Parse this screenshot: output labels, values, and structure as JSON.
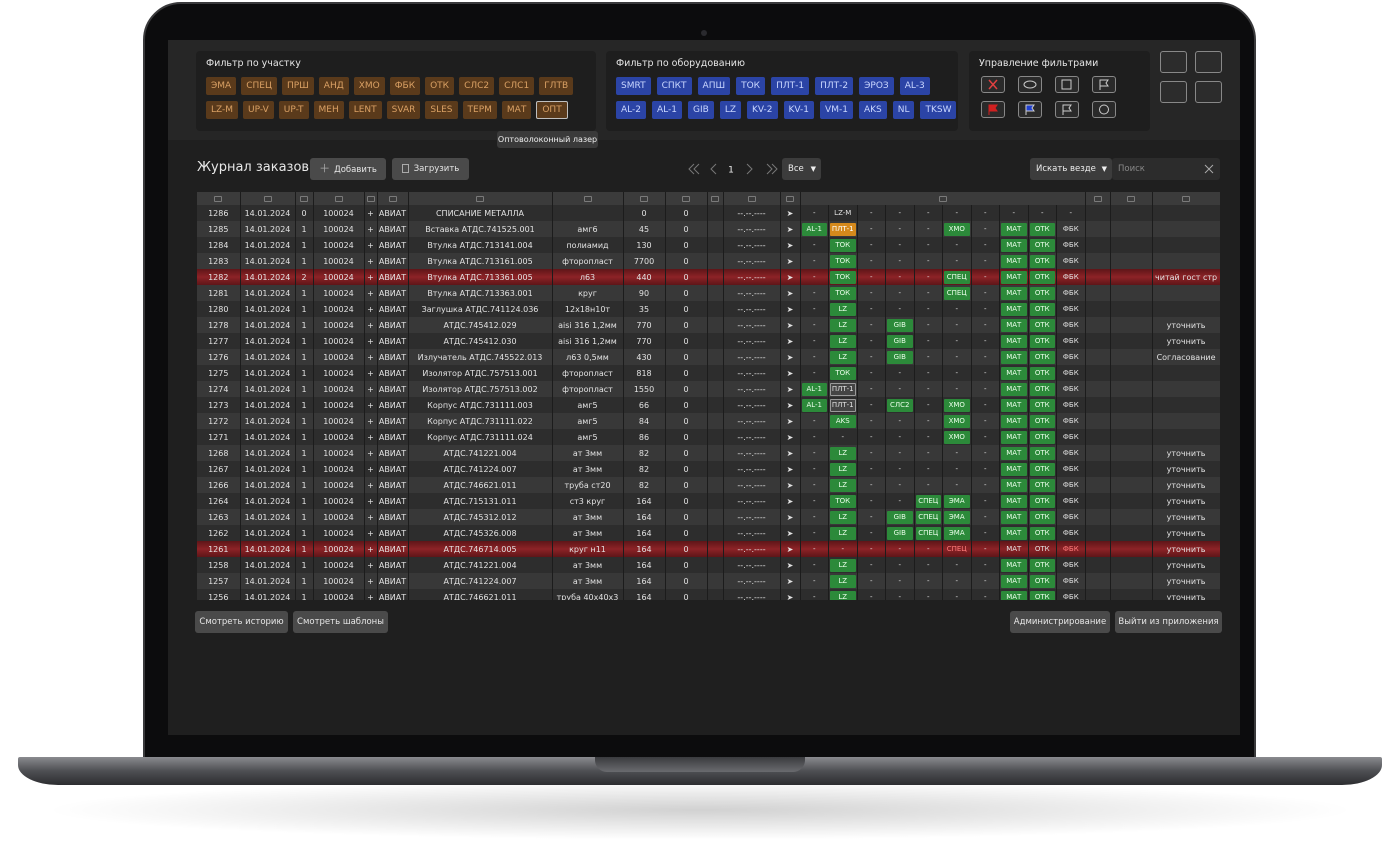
{
  "area_filter": {
    "title": "Фильтр по участку",
    "rows": [
      [
        "ЭМА",
        "СПЕЦ",
        "ПРШ",
        "АНД",
        "ХМО",
        "ФБК",
        "ОТК",
        "СЛС2",
        "СЛС1",
        "ГЛТВ"
      ],
      [
        "LZ-M",
        "UP-V",
        "UP-T",
        "МЕН",
        "LENT",
        "SVAR",
        "SLES",
        "ТЕРМ",
        "МАТ",
        "ОПТ"
      ]
    ]
  },
  "equipment_filter": {
    "title": "Фильтр по оборудованию",
    "rows": [
      [
        "SMRT",
        "СПКТ",
        "АПШ",
        "ТОК",
        "ПЛТ-1",
        "ПЛТ-2",
        "ЭРОЗ",
        "AL-3"
      ],
      [
        "AL-2",
        "AL-1",
        "GIB",
        "LZ",
        "KV-2",
        "KV-1",
        "VM-1",
        "AKS",
        "NL",
        "TKSW"
      ]
    ]
  },
  "filter_management": {
    "title": "Управление фильтрами"
  },
  "tooltip": "Оптоволоконный лазер",
  "journal": {
    "title": "Журнал заказов",
    "add": "Добавить",
    "load": "Загрузить",
    "page": "1",
    "page_size": "Все",
    "search_scope": "Искать везде",
    "search_placeholder": "Поиск"
  },
  "table": {
    "eq_column_styles": [
      "green",
      "green",
      "green",
      "green",
      "green",
      "green",
      "green",
      "green",
      "green",
      "plain"
    ],
    "rows": [
      {
        "cells": [
          "1286",
          "14.01.2024",
          "0",
          "100024",
          "+",
          "АВИАТ",
          "СПИСАНИЕ МЕТАЛЛА",
          null,
          "0",
          "0",
          "--.--.----",
          "➤"
        ],
        "eq": [
          "-",
          {
            "text": "LZ-M",
            "style": "plain"
          },
          "-",
          "-",
          "-",
          "-",
          "-",
          "-",
          "-",
          "-"
        ]
      },
      {
        "cells": [
          "1285",
          "14.01.2024",
          "1",
          "100024",
          "+",
          "АВИАТ",
          "Вставка АТДС.741525.001",
          "амг6",
          "45",
          "0",
          "--.--.----",
          "➤"
        ],
        "eq": [
          "AL-1",
          {
            "text": "ПЛТ-1",
            "style": "orange"
          },
          "-",
          "-",
          "-",
          "ХМО",
          "-",
          "МАТ",
          "ОТК",
          "ФБК"
        ]
      },
      {
        "cells": [
          "1284",
          "14.01.2024",
          "1",
          "100024",
          "+",
          "АВИАТ",
          "Втулка АТДС.713141.004",
          "полиамид",
          "130",
          "0",
          "--.--.----",
          "➤"
        ],
        "eq": [
          "-",
          "ТОК",
          "-",
          "-",
          "-",
          "-",
          "-",
          "МАТ",
          "ОТК",
          "ФБК"
        ]
      },
      {
        "cells": [
          "1283",
          "14.01.2024",
          "1",
          "100024",
          "+",
          "АВИАТ",
          "Втулка АТДС.713161.005",
          "фторопласт",
          "7700",
          "0",
          "--.--.----",
          "➤"
        ],
        "eq": [
          "-",
          "ТОК",
          "-",
          "-",
          "-",
          "-",
          "-",
          "МАТ",
          "ОТК",
          "ФБК"
        ]
      },
      {
        "cells": [
          "1282",
          "14.01.2024",
          "2",
          "100024",
          "+",
          "АВИАТ",
          "Втулка АТДС.713361.005",
          "л63",
          "440",
          "0",
          "--.--.----",
          "➤"
        ],
        "eq": [
          "-",
          "ТОК",
          "-",
          "-",
          "-",
          "СПЕЦ",
          "-",
          "МАТ",
          "ОТК",
          "ФБК"
        ],
        "note": "читай гост стр",
        "highlight": "red"
      },
      {
        "cells": [
          "1281",
          "14.01.2024",
          "1",
          "100024",
          "+",
          "АВИАТ",
          "Втулка АТДС.713363.001",
          "круг",
          "90",
          "0",
          "--.--.----",
          "➤"
        ],
        "eq": [
          "-",
          "ТОК",
          "-",
          "-",
          "-",
          "СПЕЦ",
          "-",
          "МАТ",
          "ОТК",
          "ФБК"
        ]
      },
      {
        "cells": [
          "1280",
          "14.01.2024",
          "1",
          "100024",
          "+",
          "АВИАТ",
          "Заглушка АТДС.741124.036",
          "12х18н10т",
          "35",
          "0",
          "--.--.----",
          "➤"
        ],
        "eq": [
          "-",
          "LZ",
          "-",
          "-",
          "-",
          "-",
          "-",
          "МАТ",
          "ОТК",
          "ФБК"
        ]
      },
      {
        "cells": [
          "1278",
          "14.01.2024",
          "1",
          "100024",
          "+",
          "АВИАТ",
          "АТДС.745412.029",
          "aisi 316 1,2мм",
          "770",
          "0",
          "--.--.----",
          "➤"
        ],
        "eq": [
          "-",
          "LZ",
          "-",
          "GIB",
          "-",
          "-",
          "-",
          "МАТ",
          "ОТК",
          "ФБК"
        ],
        "note": "уточнить"
      },
      {
        "cells": [
          "1277",
          "14.01.2024",
          "1",
          "100024",
          "+",
          "АВИАТ",
          "АТДС.745412.030",
          "aisi 316 1,2мм",
          "770",
          "0",
          "--.--.----",
          "➤"
        ],
        "eq": [
          "-",
          "LZ",
          "-",
          "GIB",
          "-",
          "-",
          "-",
          "МАТ",
          "ОТК",
          "ФБК"
        ],
        "note": "уточнить"
      },
      {
        "cells": [
          "1276",
          "14.01.2024",
          "1",
          "100024",
          "+",
          "АВИАТ",
          "Излучатель АТДС.745522.013",
          "л63 0,5мм",
          "430",
          "0",
          "--.--.----",
          "➤"
        ],
        "eq": [
          "-",
          "LZ",
          "-",
          "GIB",
          "-",
          "-",
          "-",
          "МАТ",
          "ОТК",
          "ФБК"
        ],
        "note": "Согласование"
      },
      {
        "cells": [
          "1275",
          "14.01.2024",
          "1",
          "100024",
          "+",
          "АВИАТ",
          "Изолятор АТДС.757513.001",
          "фторопласт",
          "818",
          "0",
          "--.--.----",
          "➤"
        ],
        "eq": [
          "-",
          "ТОК",
          "-",
          "-",
          "-",
          "-",
          "-",
          "МАТ",
          "ОТК",
          "ФБК"
        ]
      },
      {
        "cells": [
          "1274",
          "14.01.2024",
          "1",
          "100024",
          "+",
          "АВИАТ",
          "Изолятор АТДС.757513.002",
          "фторопласт",
          "1550",
          "0",
          "--.--.----",
          "➤"
        ],
        "eq": [
          "AL-1",
          {
            "text": "ПЛТ-1",
            "style": "outline"
          },
          "-",
          "-",
          "-",
          "-",
          "-",
          "МАТ",
          "ОТК",
          "ФБК"
        ]
      },
      {
        "cells": [
          "1273",
          "14.01.2024",
          "1",
          "100024",
          "+",
          "АВИАТ",
          "Корпус АТДС.731111.003",
          "амг5",
          "66",
          "0",
          "--.--.----",
          "➤"
        ],
        "eq": [
          "AL-1",
          {
            "text": "ПЛТ-1",
            "style": "outline"
          },
          "-",
          "СЛС2",
          "-",
          "ХМО",
          "-",
          "МАТ",
          "ОТК",
          "ФБК"
        ]
      },
      {
        "cells": [
          "1272",
          "14.01.2024",
          "1",
          "100024",
          "+",
          "АВИАТ",
          "Корпус АТДС.731111.022",
          "амг5",
          "84",
          "0",
          "--.--.----",
          "➤"
        ],
        "eq": [
          "-",
          "AKS",
          "-",
          "-",
          "-",
          "ХМО",
          "-",
          "МАТ",
          "ОТК",
          "ФБК"
        ]
      },
      {
        "cells": [
          "1271",
          "14.01.2024",
          "1",
          "100024",
          "+",
          "АВИАТ",
          "Корпус АТДС.731111.024",
          "амг5",
          "86",
          "0",
          "--.--.----",
          "➤"
        ],
        "eq": [
          "-",
          "-",
          "-",
          "-",
          "-",
          "ХМО",
          "-",
          "МАТ",
          "ОТК",
          "ФБК"
        ]
      },
      {
        "cells": [
          "1268",
          "14.01.2024",
          "1",
          "100024",
          "+",
          "АВИАТ",
          "АТДС.741221.004",
          "ат 3мм",
          "82",
          "0",
          "--.--.----",
          "➤"
        ],
        "eq": [
          "-",
          "LZ",
          "-",
          "-",
          "-",
          "-",
          "-",
          "МАТ",
          "ОТК",
          "ФБК"
        ],
        "note": "уточнить"
      },
      {
        "cells": [
          "1267",
          "14.01.2024",
          "1",
          "100024",
          "+",
          "АВИАТ",
          "АТДС.741224.007",
          "ат 3мм",
          "82",
          "0",
          "--.--.----",
          "➤"
        ],
        "eq": [
          "-",
          "LZ",
          "-",
          "-",
          "-",
          "-",
          "-",
          "МАТ",
          "ОТК",
          "ФБК"
        ],
        "note": "уточнить"
      },
      {
        "cells": [
          "1266",
          "14.01.2024",
          "1",
          "100024",
          "+",
          "АВИАТ",
          "АТДС.746621.011",
          "труба ст20",
          "82",
          "0",
          "--.--.----",
          "➤"
        ],
        "eq": [
          "-",
          "LZ",
          "-",
          "-",
          "-",
          "-",
          "-",
          "МАТ",
          "ОТК",
          "ФБК"
        ],
        "note": "уточнить"
      },
      {
        "cells": [
          "1264",
          "14.01.2024",
          "1",
          "100024",
          "+",
          "АВИАТ",
          "АТДС.715131.011",
          "ст3 круг",
          "164",
          "0",
          "--.--.----",
          "➤"
        ],
        "eq": [
          "-",
          "ТОК",
          "-",
          "-",
          "СПЕЦ",
          "ЭМА",
          "-",
          "МАТ",
          "ОТК",
          "ФБК"
        ],
        "note": "уточнить"
      },
      {
        "cells": [
          "1263",
          "14.01.2024",
          "1",
          "100024",
          "+",
          "АВИАТ",
          "АТДС.745312.012",
          "ат 3мм",
          "164",
          "0",
          "--.--.----",
          "➤"
        ],
        "eq": [
          "-",
          "LZ",
          "-",
          "GIB",
          "СПЕЦ",
          "ЭМА",
          "-",
          "МАТ",
          "ОТК",
          "ФБК"
        ],
        "note": "уточнить"
      },
      {
        "cells": [
          "1262",
          "14.01.2024",
          "1",
          "100024",
          "+",
          "АВИАТ",
          "АТДС.745326.008",
          "ат 3мм",
          "164",
          "0",
          "--.--.----",
          "➤"
        ],
        "eq": [
          "-",
          "LZ",
          "-",
          "GIB",
          "СПЕЦ",
          "ЭМА",
          "-",
          "МАТ",
          "ОТК",
          "ФБК"
        ],
        "note": "уточнить"
      },
      {
        "cells": [
          "1261",
          "14.01.2024",
          "1",
          "100024",
          "+",
          "АВИАТ",
          "АТДС.746714.005",
          "круг н11",
          "164",
          "0",
          "--.--.----",
          "➤"
        ],
        "eq": [
          "-",
          "-",
          "-",
          "-",
          "-",
          {
            "text": "СПЕЦ",
            "style": "redtext"
          },
          "-",
          {
            "text": "МАТ",
            "style": "plain"
          },
          {
            "text": "ОТК",
            "style": "plain"
          },
          {
            "text": "ФБК",
            "style": "redtext"
          }
        ],
        "note": "уточнить",
        "highlight": "red"
      },
      {
        "cells": [
          "1258",
          "14.01.2024",
          "1",
          "100024",
          "+",
          "АВИАТ",
          "АТДС.741221.004",
          "ат 3мм",
          "164",
          "0",
          "--.--.----",
          "➤"
        ],
        "eq": [
          "-",
          "LZ",
          "-",
          "-",
          "-",
          "-",
          "-",
          "МАТ",
          "ОТК",
          "ФБК"
        ],
        "note": "уточнить"
      },
      {
        "cells": [
          "1257",
          "14.01.2024",
          "1",
          "100024",
          "+",
          "АВИАТ",
          "АТДС.741224.007",
          "ат 3мм",
          "164",
          "0",
          "--.--.----",
          "➤"
        ],
        "eq": [
          "-",
          "LZ",
          "-",
          "-",
          "-",
          "-",
          "-",
          "МАТ",
          "ОТК",
          "ФБК"
        ],
        "note": "уточнить"
      },
      {
        "cells": [
          "1256",
          "14.01.2024",
          "1",
          "100024",
          "+",
          "АВИАТ",
          "АТДС.746621.011",
          "труба 40х40х3",
          "164",
          "0",
          "--.--.----",
          "➤"
        ],
        "eq": [
          "-",
          "LZ",
          "-",
          "-",
          "-",
          "-",
          "-",
          "МАТ",
          "ОТК",
          "ФБК"
        ],
        "note": "уточнить"
      }
    ]
  },
  "footer": {
    "history": "Смотреть историю",
    "templates": "Смотреть шаблоны",
    "admin": "Администрирование",
    "exit": "Выйти из приложения"
  }
}
